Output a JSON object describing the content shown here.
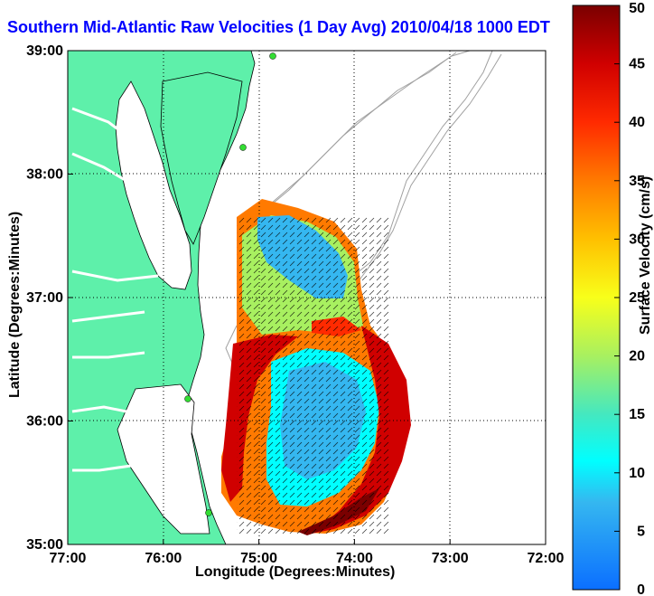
{
  "title": "Southern Mid-Atlantic Raw Velocities (1 Day Avg) 2010/04/18 1000 EDT",
  "xlabel": "Longitude (Degrees:Minutes)",
  "ylabel": "Latitude (Degrees:Minutes)",
  "colorbar": {
    "label": "Surface Velocity (cm/s)",
    "ticks": [
      "0",
      "5",
      "10",
      "15",
      "20",
      "25",
      "30",
      "35",
      "40",
      "45",
      "50"
    ],
    "range": [
      0,
      50
    ]
  },
  "map": {
    "lon_ticks": [
      "77:00",
      "76:00",
      "75:00",
      "74:00",
      "73:00",
      "72:00"
    ],
    "lat_ticks": [
      "39:00",
      "38:00",
      "37:00",
      "36:00",
      "35:00"
    ],
    "lon_range": [
      -77,
      -72
    ],
    "lat_range": [
      35,
      39
    ],
    "grid": "dotted",
    "land_color": "#5ef0aa",
    "coastline_color": "#000000",
    "bathymetry_color": "#a0a0a0"
  }
}
